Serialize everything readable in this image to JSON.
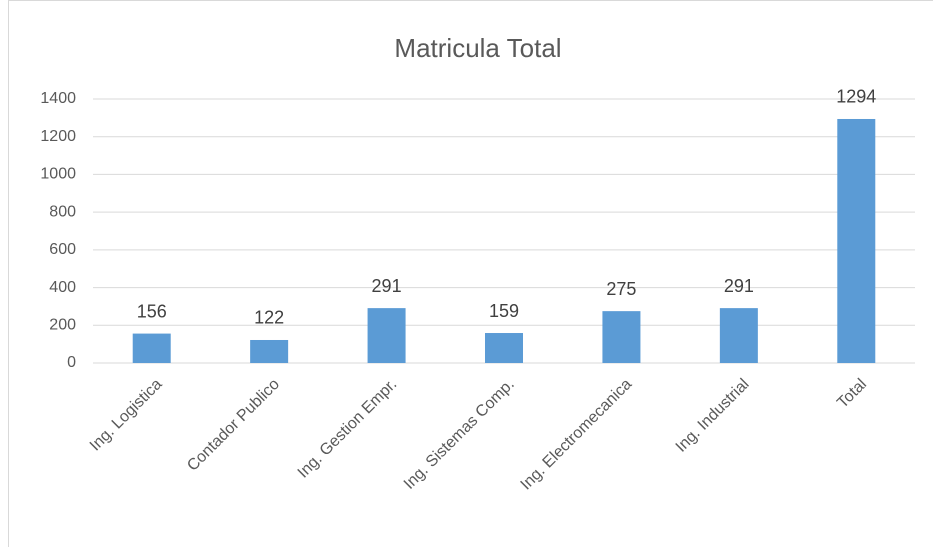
{
  "chart_data": {
    "type": "bar",
    "title": "Matricula Total",
    "categories": [
      "Ing. Logistica",
      "Contador Publico",
      "Ing. Gestion Empr.",
      "Ing. Sistemas Comp.",
      "Ing. Electromecanica",
      "Ing. Industrial",
      "Total"
    ],
    "values": [
      156,
      122,
      291,
      159,
      275,
      291,
      1294
    ],
    "color": "#5b9bd5",
    "ylim": [
      0,
      1400
    ],
    "yticks": [
      0,
      200,
      400,
      600,
      800,
      1000,
      1200,
      1400
    ],
    "grid": true
  }
}
